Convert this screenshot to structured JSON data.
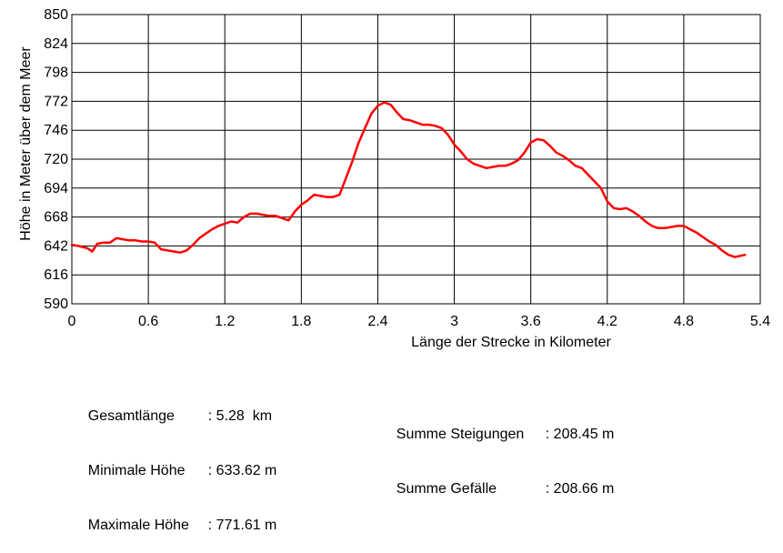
{
  "chart_data": {
    "type": "line",
    "xlabel": "Länge der Strecke in Kilometer",
    "ylabel": "Höhe in Meter über dem Meer",
    "xlim": [
      0,
      5.4
    ],
    "ylim": [
      590,
      850
    ],
    "x_ticks": [
      "0",
      "0.6",
      "1.2",
      "1.8",
      "2.4",
      "3",
      "3.6",
      "4.2",
      "4.8",
      "5.4"
    ],
    "y_ticks": [
      "850",
      "824",
      "798",
      "772",
      "746",
      "720",
      "694",
      "668",
      "642",
      "616",
      "590"
    ],
    "grid": true,
    "line_color": "#ff0000",
    "series": [
      {
        "x": [
          0,
          0.05,
          0.12,
          0.16,
          0.2,
          0.25,
          0.3,
          0.35,
          0.4,
          0.45,
          0.5,
          0.55,
          0.6,
          0.65,
          0.7,
          0.75,
          0.8,
          0.85,
          0.9,
          0.95,
          1.0,
          1.05,
          1.1,
          1.15,
          1.2,
          1.25,
          1.3,
          1.35,
          1.4,
          1.45,
          1.5,
          1.55,
          1.6,
          1.65,
          1.7,
          1.75,
          1.8,
          1.85,
          1.9,
          2.0,
          2.05,
          2.1,
          2.15,
          2.2,
          2.25,
          2.3,
          2.35,
          2.4,
          2.45,
          2.5,
          2.55,
          2.6,
          2.65,
          2.7,
          2.75,
          2.8,
          2.85,
          2.9,
          2.95,
          3.0,
          3.05,
          3.1,
          3.15,
          3.2,
          3.25,
          3.3,
          3.35,
          3.4,
          3.45,
          3.5,
          3.55,
          3.6,
          3.65,
          3.7,
          3.75,
          3.8,
          3.85,
          3.9,
          3.95,
          4.0,
          4.05,
          4.1,
          4.15,
          4.2,
          4.25,
          4.3,
          4.35,
          4.4,
          4.45,
          4.5,
          4.55,
          4.6,
          4.65,
          4.7,
          4.75,
          4.8,
          4.85,
          4.9,
          4.95,
          5.0,
          5.05,
          5.1,
          5.15,
          5.2,
          5.28
        ],
        "y": [
          643,
          642,
          640,
          637,
          644,
          645,
          645,
          649,
          648,
          647,
          647,
          646,
          646,
          645,
          639,
          638,
          637,
          636,
          638,
          643,
          649,
          653,
          657,
          660,
          662,
          664,
          663,
          668,
          671,
          671,
          670,
          669,
          669,
          667,
          665,
          673,
          679,
          683,
          688,
          686,
          686,
          688,
          703,
          718,
          735,
          748,
          761,
          768,
          771,
          769,
          762,
          756,
          755,
          753,
          751,
          751,
          750,
          748,
          742,
          733,
          727,
          720,
          716,
          714,
          712,
          713,
          714,
          714,
          716,
          719,
          726,
          735,
          738,
          737,
          732,
          726,
          723,
          719,
          714,
          712,
          706,
          700,
          694,
          682,
          676,
          675,
          676,
          673,
          669,
          664,
          660,
          658,
          658,
          659,
          660,
          660,
          657,
          654,
          650,
          646,
          643,
          638,
          634,
          632,
          634
        ]
      }
    ]
  },
  "stats": {
    "total_length_label": "Gesamtlänge",
    "total_length_value": ": 5.28  km",
    "min_height_label": "Minimale Höhe",
    "min_height_value": ": 633.62 m",
    "max_height_label": "Maximale Höhe",
    "max_height_value": ": 771.61 m",
    "ascent_label": "Summe Steigungen",
    "ascent_value": ": 208.45 m",
    "descent_label": "Summe Gefälle",
    "descent_value": ": 208.66 m"
  }
}
